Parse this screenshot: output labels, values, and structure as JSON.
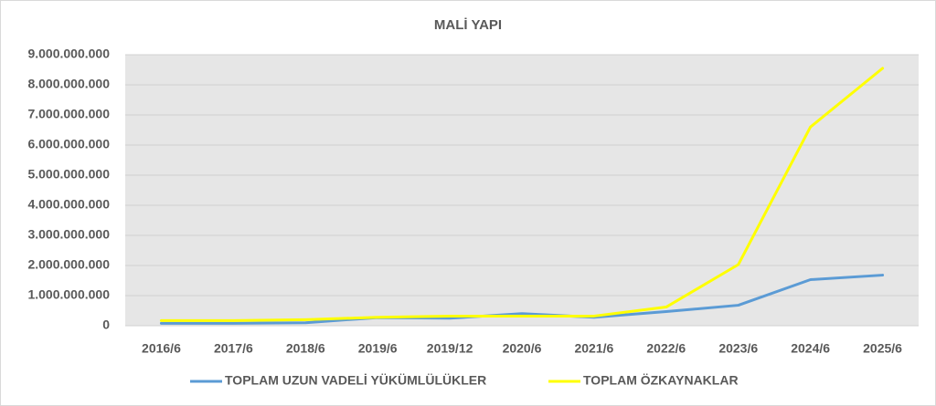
{
  "chart_data": {
    "type": "line",
    "title": "MALİ YAPI",
    "categories": [
      "2016/6",
      "2017/6",
      "2018/6",
      "2019/6",
      "2019/12",
      "2020/6",
      "2021/6",
      "2022/6",
      "2023/6",
      "2024/6",
      "2025/6"
    ],
    "series": [
      {
        "name": "TOPLAM UZUN VADELİ YÜKÜMLÜLÜKLER",
        "color": "#5b9bd5",
        "values": [
          80000000,
          80000000,
          100000000,
          270000000,
          250000000,
          400000000,
          280000000,
          470000000,
          680000000,
          1530000000,
          1680000000
        ]
      },
      {
        "name": "TOPLAM ÖZKAYNAKLAR",
        "color": "#ffff00",
        "values": [
          170000000,
          170000000,
          200000000,
          280000000,
          320000000,
          320000000,
          320000000,
          620000000,
          2030000000,
          6600000000,
          8550000000
        ]
      }
    ],
    "ylim": [
      0,
      9000000000
    ],
    "yticks": [
      0,
      {
        "value": 1000000000,
        "label": "1.000.000.000"
      },
      {
        "value": 2000000000,
        "label": "2.000.000.000"
      },
      {
        "value": 3000000000,
        "label": "3.000.000.000"
      },
      {
        "value": 4000000000,
        "label": "4.000.000.000"
      },
      {
        "value": 5000000000,
        "label": "5.000.000.000"
      },
      {
        "value": 6000000000,
        "label": "6.000.000.000"
      },
      {
        "value": 7000000000,
        "label": "7.000.000.000"
      },
      {
        "value": 8000000000,
        "label": "8.000.000.000"
      },
      {
        "value": 9000000000,
        "label": "9.000.000.000"
      }
    ],
    "grid": true,
    "legend": "bottom"
  }
}
